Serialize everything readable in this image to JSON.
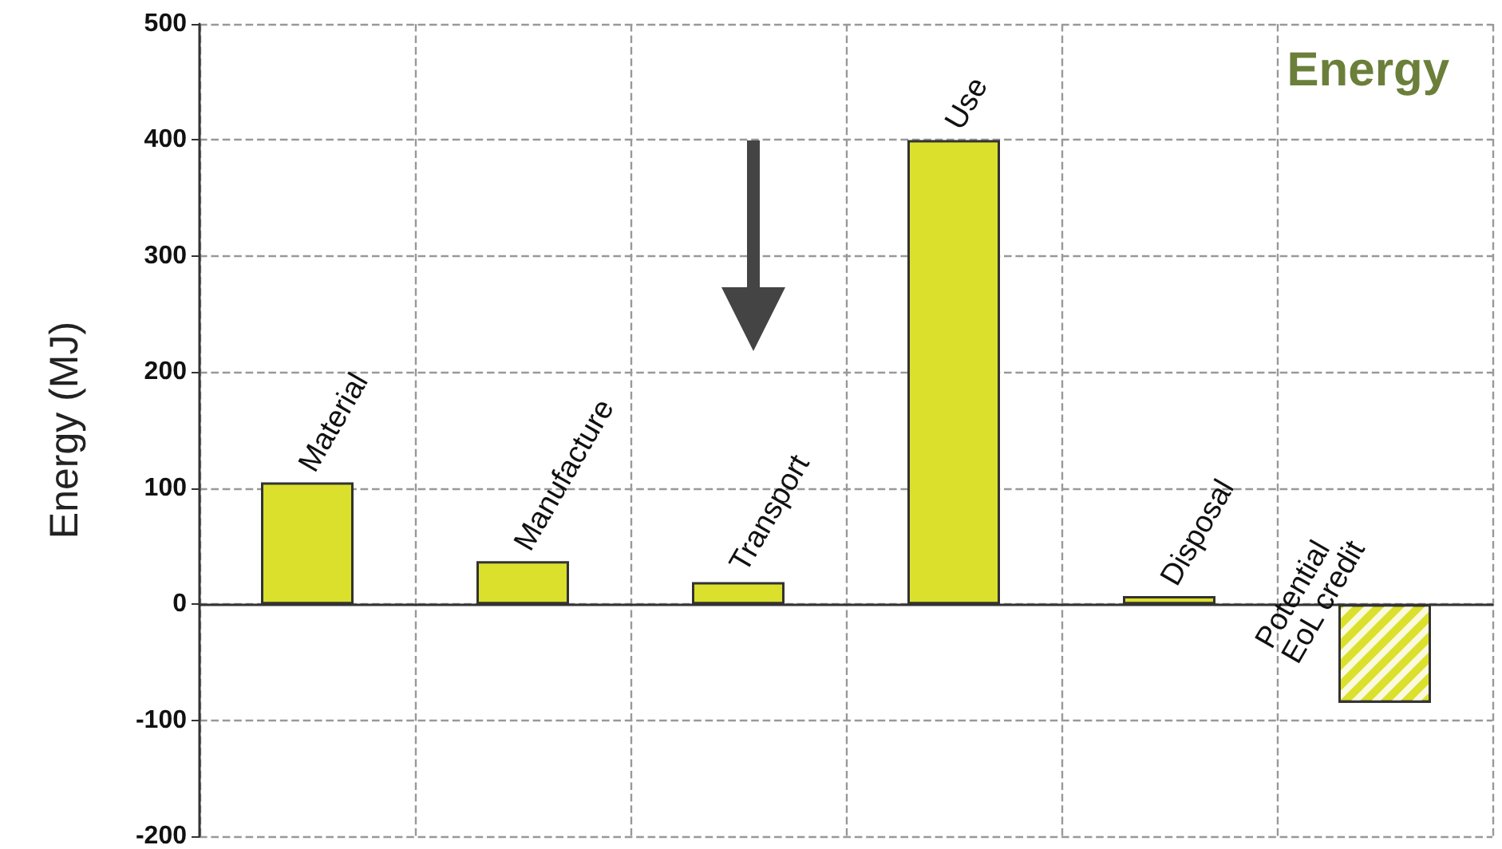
{
  "chart_data": {
    "type": "bar",
    "title": "Energy",
    "ylabel": "Energy (MJ)",
    "categories": [
      "Material",
      "Manufacture",
      "Transport",
      "Use",
      "Disposal",
      "Potential EoL credit"
    ],
    "values": [
      105,
      37,
      19,
      400,
      7,
      -85
    ],
    "color": "#dbe02c",
    "ylim": [
      -200,
      500
    ],
    "yticks": [
      -200,
      -100,
      0,
      100,
      200,
      300,
      400,
      500
    ],
    "grid": true
  }
}
